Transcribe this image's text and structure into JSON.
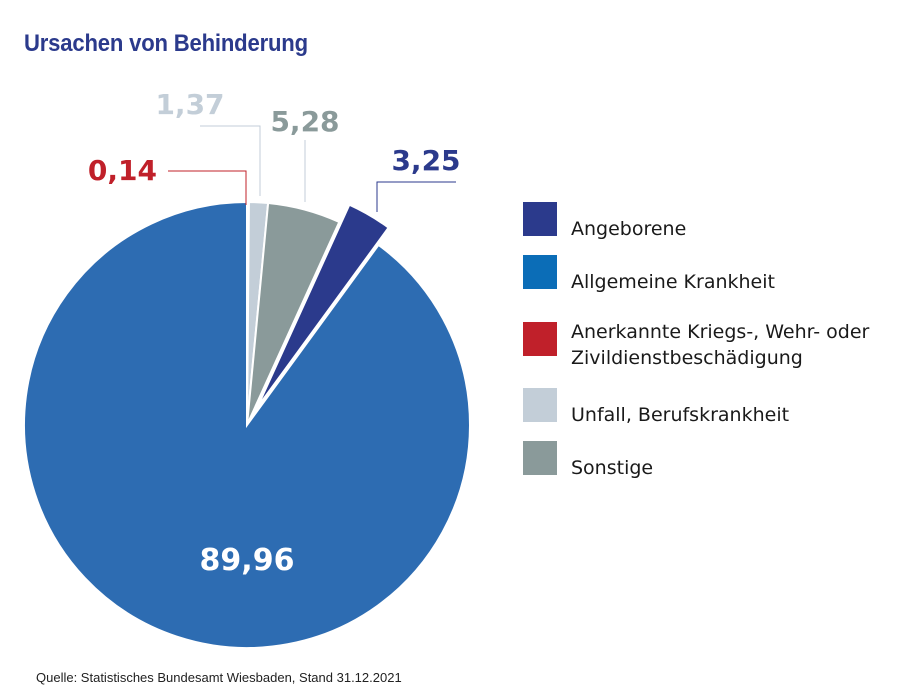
{
  "title": "Ursachen von Behinderung",
  "source": "Quelle: Statistisches Bundesamt Wiesbaden, Stand 31.12.2021",
  "chart_data": {
    "type": "pie",
    "title": "Ursachen von Behinderung",
    "slices": [
      {
        "name": "Angeborene",
        "value": 3.25,
        "label": "3,25",
        "color": "#2b3a8c",
        "label_color": "#2b3a8c",
        "exploded": true
      },
      {
        "name": "Allgemeine Krankheit",
        "value": 89.96,
        "label": "89,96",
        "color": "#2d6cb2",
        "label_color": "#ffffff",
        "exploded": false
      },
      {
        "name": "Anerkannte Kriegs-, Wehr- oder Zivildienstbeschädigung",
        "value": 0.14,
        "label": "0,14",
        "color": "#c0202a",
        "label_color": "#c0202a",
        "exploded": false
      },
      {
        "name": "Unfall, Berufskrankheit",
        "value": 1.37,
        "label": "1,37",
        "color": "#c3ced8",
        "label_color": "#c3ced8",
        "exploded": false
      },
      {
        "name": "Sonstige",
        "value": 5.28,
        "label": "5,28",
        "color": "#8a9a9a",
        "label_color": "#8a9a9a",
        "exploded": false
      }
    ],
    "legend_position": "right",
    "legend": [
      {
        "label": "Angeborene",
        "color": "#2b3a8c"
      },
      {
        "label": "Allgemeine Krankheit",
        "color": "#0b6db7"
      },
      {
        "label": "Anerkannte Kriegs-, Wehr- oder Zivildienstbeschädigung",
        "color": "#c0202a"
      },
      {
        "label": "Unfall, Berufskrankheit",
        "color": "#c3ced8"
      },
      {
        "label": "Sonstige",
        "color": "#8a9a9a"
      }
    ]
  }
}
